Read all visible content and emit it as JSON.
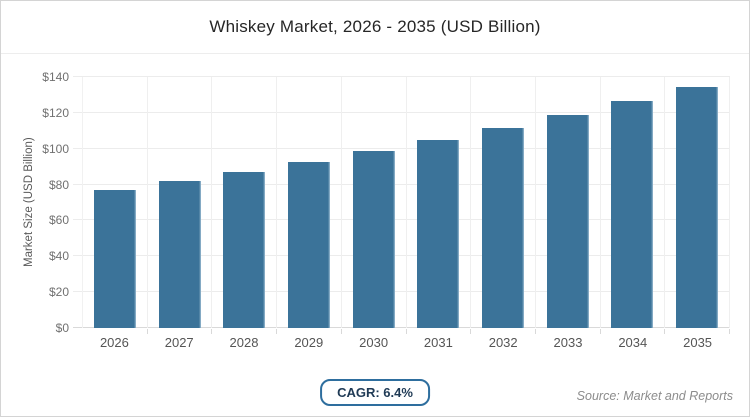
{
  "panel": {
    "title": "Whiskey Market, 2026 - 2035 (USD Billion)"
  },
  "chart_data": {
    "type": "bar",
    "title": "Whiskey Market, 2026 - 2035 (USD Billion)",
    "categories": [
      "2026",
      "2027",
      "2028",
      "2029",
      "2030",
      "2031",
      "2032",
      "2033",
      "2034",
      "2035"
    ],
    "values": [
      77.0,
      81.9,
      87.2,
      92.8,
      98.7,
      105.0,
      111.8,
      118.9,
      126.5,
      134.6
    ],
    "xlabel": "",
    "ylabel": "Market Size (USD Billion)",
    "ylim": [
      0,
      140
    ],
    "ytick_step": 20,
    "ytick_prefix": "$",
    "grid": true,
    "legend_position": "none"
  },
  "footer": {
    "cagr_badge": "CAGR: 6.4%",
    "source": "Source: Market and Reports"
  },
  "colors": {
    "background": "#ffffff",
    "panel_border": "#d4d4d4",
    "title_text": "#262626",
    "bar": "#3b7399",
    "bar_edge_highlight": "#9dbdd2",
    "grid_line": "#ececec",
    "axis_line": "#d9d9d9",
    "tick_label": "#707070",
    "category_label": "#555555",
    "axis_title": "#595959",
    "badge_border": "#2e6e9e",
    "badge_text": "#1f3a55",
    "source_text": "#8c8c8c"
  }
}
